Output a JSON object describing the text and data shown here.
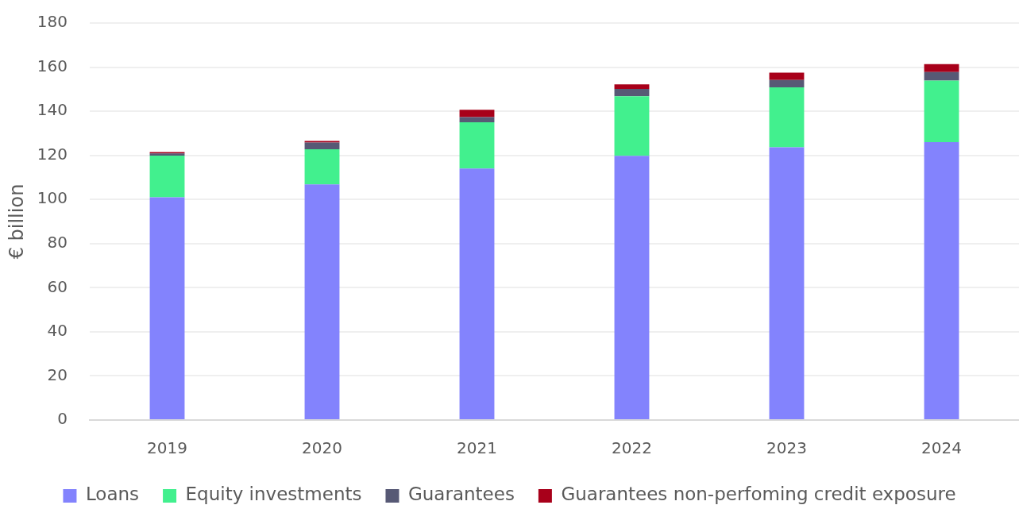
{
  "chart_data": {
    "type": "bar",
    "stacked": true,
    "ylabel": "€ billion",
    "categories": [
      "2019",
      "2020",
      "2021",
      "2022",
      "2023",
      "2024"
    ],
    "series": [
      {
        "name": "Loans",
        "color": "#8383fd",
        "values": [
          101,
          106.8,
          114,
          119.8,
          123.7,
          126
        ]
      },
      {
        "name": "Equity investments",
        "color": "#42f08e",
        "values": [
          18.9,
          16,
          21,
          27,
          27.1,
          27.9
        ]
      },
      {
        "name": "Guarantees",
        "color": "#575975",
        "values": [
          1,
          3,
          2.3,
          3.3,
          3.4,
          3.9
        ]
      },
      {
        "name": "Guarantees non-perfoming credit exposure",
        "color": "#a8001a",
        "values": [
          0.6,
          0.7,
          3.4,
          2.1,
          3.3,
          3.6
        ]
      }
    ],
    "ylim": [
      0,
      180
    ],
    "yticks": [
      0,
      20,
      40,
      60,
      80,
      100,
      120,
      140,
      160,
      180
    ],
    "grid": "y",
    "legend": "bottom"
  }
}
